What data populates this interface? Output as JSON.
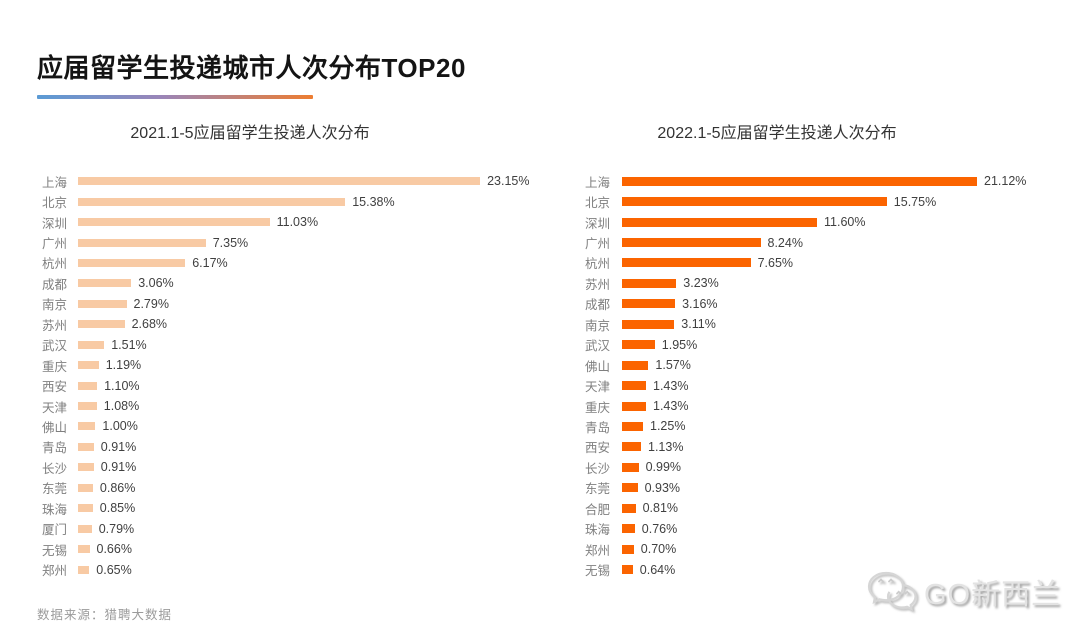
{
  "page": {
    "title": "应届留学生投递城市人次分布TOP20",
    "source_note": "数据来源：猎聘大数据",
    "watermark": "GO新西兰"
  },
  "colors": {
    "underline_gradient_start": "#5b9bd5",
    "underline_gradient_mid": "#9a85b8",
    "underline_gradient_end": "#ed7d31",
    "bar_2021": "#f8caa4",
    "bar_2022": "#fb6400",
    "category_label": "#7f7f7f",
    "value_label": "#404040",
    "source_text": "#9b9b9b",
    "watermark_text": "#e3e3e3"
  },
  "chart_data": [
    {
      "type": "bar",
      "orientation": "horizontal",
      "title": "2021.1-5应届留学生投递人次分布",
      "value_format": "percent",
      "bar_color": "#f8caa4",
      "grid": false,
      "legend": false,
      "xlim": [
        0,
        25.9
      ],
      "categories": [
        "上海",
        "北京",
        "深圳",
        "广州",
        "杭州",
        "成都",
        "南京",
        "苏州",
        "武汉",
        "重庆",
        "西安",
        "天津",
        "佛山",
        "青岛",
        "长沙",
        "东莞",
        "珠海",
        "厦门",
        "无锡",
        "郑州"
      ],
      "values": [
        23.15,
        15.38,
        11.03,
        7.35,
        6.17,
        3.06,
        2.79,
        2.68,
        1.51,
        1.19,
        1.1,
        1.08,
        1.0,
        0.91,
        0.91,
        0.86,
        0.85,
        0.79,
        0.66,
        0.65
      ],
      "value_labels": [
        "23.15%",
        "15.38%",
        "11.03%",
        "7.35%",
        "6.17%",
        "3.06%",
        "2.79%",
        "2.68%",
        "1.51%",
        "1.19%",
        "1.10%",
        "1.08%",
        "1.00%",
        "0.91%",
        "0.91%",
        "0.86%",
        "0.85%",
        "0.79%",
        "0.66%",
        "0.65%"
      ]
    },
    {
      "type": "bar",
      "orientation": "horizontal",
      "title": "2022.1-5应届留学生投递人次分布",
      "value_format": "percent",
      "bar_color": "#fb6400",
      "grid": false,
      "legend": false,
      "xlim": [
        0,
        25.9
      ],
      "categories": [
        "上海",
        "北京",
        "深圳",
        "广州",
        "杭州",
        "苏州",
        "成都",
        "南京",
        "武汉",
        "佛山",
        "天津",
        "重庆",
        "青岛",
        "西安",
        "长沙",
        "东莞",
        "合肥",
        "珠海",
        "郑州",
        "无锡"
      ],
      "values": [
        21.12,
        15.75,
        11.6,
        8.24,
        7.65,
        3.23,
        3.16,
        3.11,
        1.95,
        1.57,
        1.43,
        1.43,
        1.25,
        1.13,
        0.99,
        0.93,
        0.81,
        0.76,
        0.7,
        0.64
      ],
      "value_labels": [
        "21.12%",
        "15.75%",
        "11.60%",
        "8.24%",
        "7.65%",
        "3.23%",
        "3.16%",
        "3.11%",
        "1.95%",
        "1.57%",
        "1.43%",
        "1.43%",
        "1.25%",
        "1.13%",
        "0.99%",
        "0.93%",
        "0.81%",
        "0.76%",
        "0.70%",
        "0.64%"
      ]
    }
  ]
}
